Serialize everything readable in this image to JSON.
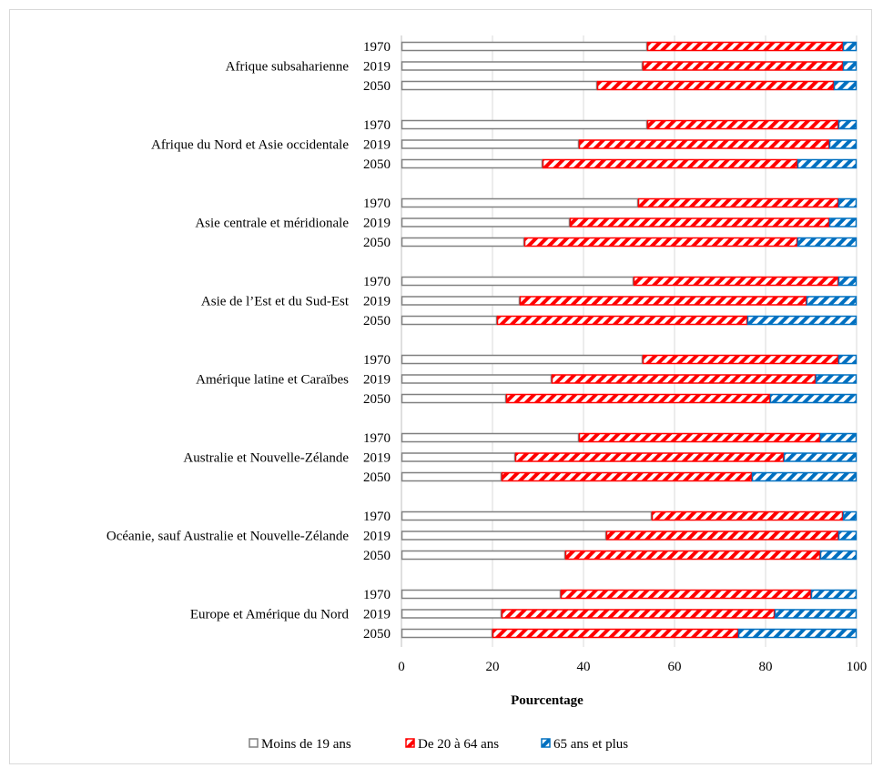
{
  "chart_data": {
    "type": "bar",
    "orientation": "horizontal",
    "stacked": true,
    "xlabel": "Pourcentage",
    "xlim": [
      0,
      100
    ],
    "xticks": [
      0,
      20,
      40,
      60,
      80,
      100
    ],
    "grid": "vertical",
    "legend_position": "bottom",
    "years": [
      "1970",
      "2019",
      "2050"
    ],
    "series": [
      {
        "name": "Moins de 19 ans",
        "color": "#808080",
        "pattern": "hollow"
      },
      {
        "name": "De 20 à 64 ans",
        "color": "#ff0000",
        "pattern": "diagonal-stripes"
      },
      {
        "name": "65 ans et plus",
        "color": "#0070c0",
        "pattern": "diagonal-stripes"
      }
    ],
    "groups": [
      {
        "region": "Afrique subsaharienne",
        "rows": [
          {
            "year": "1970",
            "values": [
              54,
              43,
              3
            ]
          },
          {
            "year": "2019",
            "values": [
              53,
              44,
              3
            ]
          },
          {
            "year": "2050",
            "values": [
              43,
              52,
              5
            ]
          }
        ]
      },
      {
        "region": "Afrique du Nord et Asie occidentale",
        "rows": [
          {
            "year": "1970",
            "values": [
              54,
              42,
              4
            ]
          },
          {
            "year": "2019",
            "values": [
              39,
              55,
              6
            ]
          },
          {
            "year": "2050",
            "values": [
              31,
              56,
              13
            ]
          }
        ]
      },
      {
        "region": "Asie centrale et méridionale",
        "rows": [
          {
            "year": "1970",
            "values": [
              52,
              44,
              4
            ]
          },
          {
            "year": "2019",
            "values": [
              37,
              57,
              6
            ]
          },
          {
            "year": "2050",
            "values": [
              27,
              60,
              13
            ]
          }
        ]
      },
      {
        "region": "Asie de l’Est et du Sud-Est",
        "rows": [
          {
            "year": "1970",
            "values": [
              51,
              45,
              4
            ]
          },
          {
            "year": "2019",
            "values": [
              26,
              63,
              11
            ]
          },
          {
            "year": "2050",
            "values": [
              21,
              55,
              24
            ]
          }
        ]
      },
      {
        "region": "Amérique latine et Caraïbes",
        "rows": [
          {
            "year": "1970",
            "values": [
              53,
              43,
              4
            ]
          },
          {
            "year": "2019",
            "values": [
              33,
              58,
              9
            ]
          },
          {
            "year": "2050",
            "values": [
              23,
              58,
              19
            ]
          }
        ]
      },
      {
        "region": "Australie et Nouvelle-Zélande",
        "rows": [
          {
            "year": "1970",
            "values": [
              39,
              53,
              8
            ]
          },
          {
            "year": "2019",
            "values": [
              25,
              59,
              16
            ]
          },
          {
            "year": "2050",
            "values": [
              22,
              55,
              23
            ]
          }
        ]
      },
      {
        "region": "Océanie, sauf Australie et Nouvelle-Zélande",
        "rows": [
          {
            "year": "1970",
            "values": [
              55,
              42,
              3
            ]
          },
          {
            "year": "2019",
            "values": [
              45,
              51,
              4
            ]
          },
          {
            "year": "2050",
            "values": [
              36,
              56,
              8
            ]
          }
        ]
      },
      {
        "region": "Europe et Amérique du Nord",
        "rows": [
          {
            "year": "1970",
            "values": [
              35,
              55,
              10
            ]
          },
          {
            "year": "2019",
            "values": [
              22,
              60,
              18
            ]
          },
          {
            "year": "2050",
            "values": [
              20,
              54,
              26
            ]
          }
        ]
      }
    ]
  }
}
